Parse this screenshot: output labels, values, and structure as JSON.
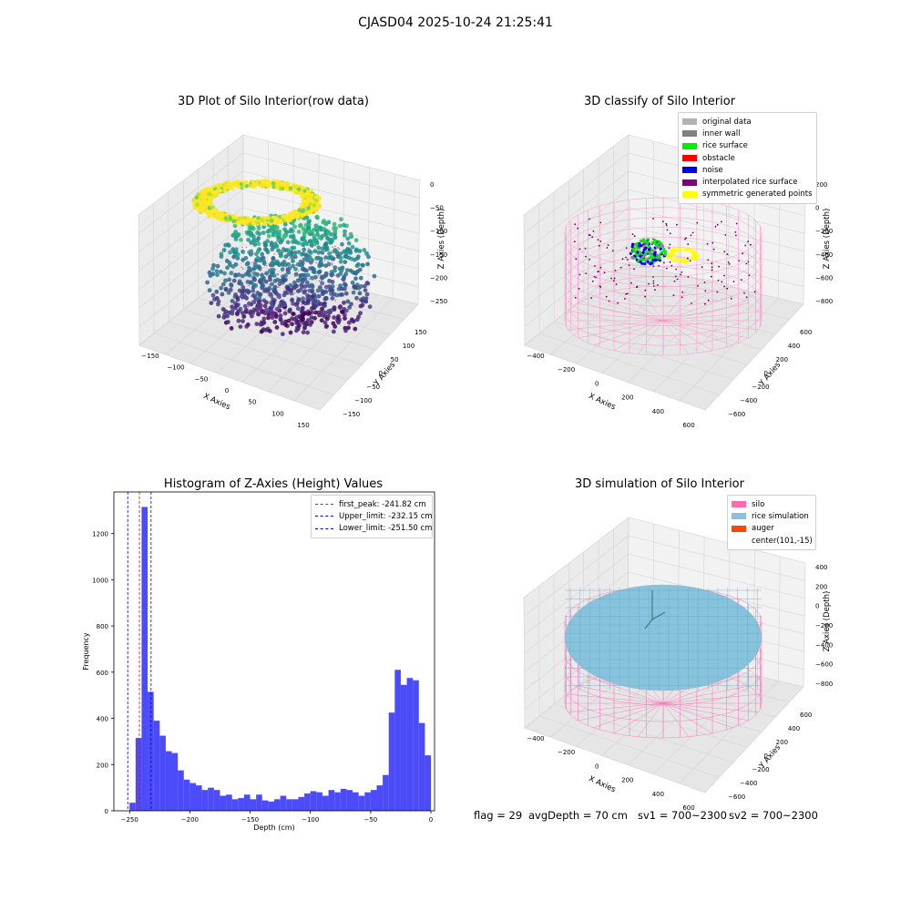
{
  "figure": {
    "suptitle": "CJASD04 2025-10-24 21:25:41",
    "status": {
      "flag": "flag = 29",
      "avg_depth": "avgDepth = 70 cm",
      "sv1": "sv1 = 700~2300",
      "sv2": "sv2 = 700~2300"
    }
  },
  "colors": {
    "hist_bar": "#4b4bfa",
    "peak_line": "#ff0000",
    "limit_line": "#0000cc",
    "silo": "#ff69b4",
    "rice_simulation": "#87c3dc",
    "auger": "#ff4500",
    "rice_surface": "#00ee00",
    "noise": "#0000ee",
    "symmetric": "#ffff00"
  },
  "chart_data": [
    {
      "type": "scatter",
      "panel": "raw-3d",
      "title": "3D Plot of Silo Interior(row data)",
      "xlabel": "X Axies",
      "ylabel": "Y Axies",
      "zlabel": "Z Axies (Depth)",
      "x_ticks": [
        "−150",
        "−100",
        "−50",
        "0",
        "50",
        "100",
        "150"
      ],
      "y_ticks": [
        "−150",
        "−100",
        "−50",
        "0",
        "50",
        "100",
        "150"
      ],
      "z_ticks": [
        "0",
        "−50",
        "−100",
        "−150",
        "−200",
        "−250"
      ]
    },
    {
      "type": "scatter",
      "panel": "classify-3d",
      "title": "3D classify of Silo Interior",
      "xlabel": "X Axies",
      "ylabel": "Y Axies",
      "zlabel": "Z Axies (Depth)",
      "x_ticks": [
        "−400",
        "−200",
        "0",
        "200",
        "400",
        "600"
      ],
      "y_ticks": [
        "−600",
        "−400",
        "−200",
        "0",
        "200",
        "400",
        "600"
      ],
      "z_ticks": [
        "200",
        "0",
        "−200",
        "−400",
        "−600",
        "−800"
      ],
      "legend": [
        {
          "label": "original data",
          "color": "#b3b3b3"
        },
        {
          "label": "inner wall",
          "color": "#808080"
        },
        {
          "label": "rice surface",
          "color": "#00ee00"
        },
        {
          "label": "obstacle",
          "color": "#ff0000"
        },
        {
          "label": "noise",
          "color": "#0000ee"
        },
        {
          "label": "interpolated rice surface",
          "color": "#800080"
        },
        {
          "label": "symmetric generated points",
          "color": "#ffff00"
        }
      ]
    },
    {
      "type": "bar",
      "panel": "histogram",
      "title": "Histogram of Z-Axies (Height) Values",
      "xlabel": "Depth (cm)",
      "ylabel": "Frequency",
      "xlim": [
        -263,
        3
      ],
      "ylim": [
        0,
        1380
      ],
      "bin_start": -250,
      "bin_width": 5,
      "values": [
        35,
        315,
        1315,
        515,
        390,
        325,
        258,
        250,
        175,
        135,
        120,
        110,
        90,
        100,
        90,
        65,
        70,
        50,
        55,
        70,
        50,
        70,
        45,
        40,
        50,
        65,
        50,
        50,
        60,
        75,
        85,
        80,
        65,
        90,
        80,
        95,
        90,
        80,
        65,
        80,
        90,
        110,
        155,
        425,
        610,
        545,
        575,
        565,
        380,
        240
      ],
      "x_ticks": [
        -250,
        -200,
        -150,
        -100,
        -50,
        0
      ],
      "x_tick_labels": [
        "−250",
        "−200",
        "−150",
        "−100",
        "−50",
        "0"
      ],
      "y_ticks": [
        0,
        200,
        400,
        600,
        800,
        1000,
        1200
      ],
      "vlines": [
        {
          "label": "first_peak: -241.82 cm",
          "x": -241.82,
          "color": "#ff0000"
        },
        {
          "label": "Upper_limit: -232.15 cm",
          "x": -232.15,
          "color": "#0000cc"
        },
        {
          "label": "Lower_limit: -251.50 cm",
          "x": -251.5,
          "color": "#0000cc"
        }
      ],
      "legend_position": "upper right"
    },
    {
      "type": "area",
      "panel": "simulation-3d",
      "title": "3D simulation of Silo Interior",
      "xlabel": "X Axies",
      "ylabel": "Y Axies",
      "zlabel": "Z Axies (Depth)",
      "x_ticks": [
        "−400",
        "−200",
        "0",
        "200",
        "400",
        "600"
      ],
      "y_ticks": [
        "−600",
        "−400",
        "−200",
        "0",
        "200",
        "400",
        "600"
      ],
      "z_ticks": [
        "400",
        "200",
        "0",
        "−200",
        "−400",
        "−600",
        "−800"
      ],
      "legend": [
        {
          "label": "silo",
          "color": "#ff69b4"
        },
        {
          "label": "rice simulation",
          "color": "#87c3dc"
        },
        {
          "label": "auger",
          "color": "#ff4500"
        },
        {
          "label": "center(101,-15)",
          "color": ""
        }
      ]
    }
  ]
}
